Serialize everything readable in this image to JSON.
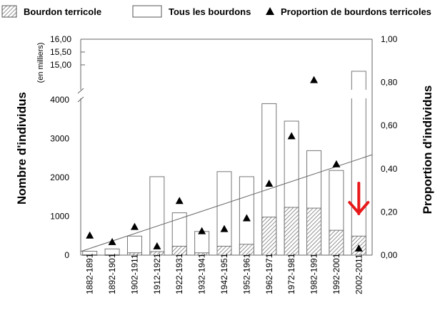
{
  "chart_data": {
    "type": "bar",
    "categories": [
      "1882-1891",
      "1892-1901",
      "1902-1911",
      "1912-1921",
      "1922-1931",
      "1932-1941",
      "1942-1951",
      "1952-1961",
      "1962-1971",
      "1972-1981",
      "1982-1991",
      "1992-2001",
      "2002-2011"
    ],
    "series": [
      {
        "name": "Tous les bourdons",
        "type": "bar",
        "axis": "left",
        "values": [
          100,
          160,
          490,
          2020,
          1090,
          610,
          2150,
          2020,
          3900,
          3450,
          2690,
          2180,
          14750
        ]
      },
      {
        "name": "Bourdon terricole",
        "type": "bar",
        "axis": "left",
        "values": [
          10,
          10,
          60,
          90,
          230,
          60,
          230,
          280,
          980,
          1230,
          1210,
          640,
          490
        ]
      },
      {
        "name": "Proportion de bourdons terricoles",
        "type": "scatter",
        "axis": "right",
        "values": [
          0.09,
          0.06,
          0.13,
          0.04,
          0.25,
          0.11,
          0.12,
          0.17,
          0.33,
          0.55,
          0.81,
          0.42,
          0.03
        ]
      }
    ],
    "trendline": {
      "axis": "right",
      "start": 0.017,
      "end": 0.465
    },
    "ylabel": "Nombre d'individus",
    "ylabel_upper_unit": "(en milliers)",
    "y2label": "Proportion d'individus",
    "yticks_lower": [
      "0",
      "1000",
      "2000",
      "3000",
      "4000"
    ],
    "yticks_lower_values": [
      0,
      1000,
      2000,
      3000,
      4000
    ],
    "yticks_upper": [
      "15,00",
      "15,50",
      "16,00"
    ],
    "yticks_upper_values": [
      15000,
      15500,
      16000
    ],
    "y2ticks": [
      "0,00",
      "0,20",
      "0,40",
      "0,60",
      "0,80",
      "1,00"
    ],
    "y2ticks_values": [
      0,
      0.2,
      0.4,
      0.6,
      0.8,
      1.0
    ],
    "ylim": [
      0,
      16000
    ],
    "y2lim": [
      0,
      1
    ],
    "axis_break": true,
    "annotation": {
      "type": "arrow-down",
      "category": "2002-2011",
      "color": "#e8191a"
    },
    "legend": {
      "placement": "top",
      "entries": [
        "Bourdon terricole",
        "Tous les bourdons",
        "Proportion de bourdons terricoles"
      ]
    }
  }
}
